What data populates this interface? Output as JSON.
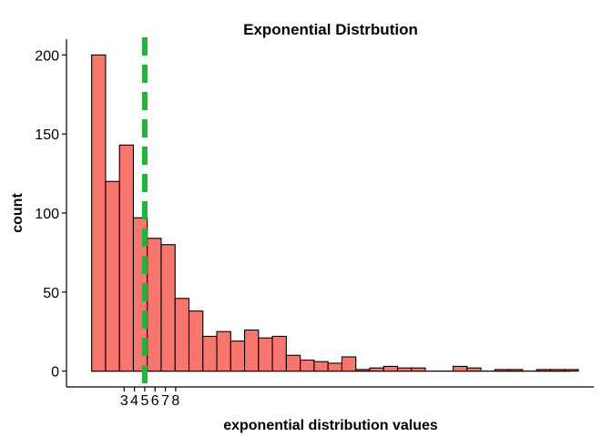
{
  "chart_data": {
    "type": "bar",
    "title": "Exponential Distrbution",
    "xlabel": "exponential distribution values",
    "ylabel": "count",
    "ylim": [
      -10,
      210
    ],
    "xlim": [
      -2.6,
      48.6
    ],
    "y_ticks": [
      0,
      50,
      100,
      150,
      200
    ],
    "x_ticks": [
      3,
      4,
      5,
      6,
      7,
      8
    ],
    "bin_width": 1.35,
    "first_bin_center": 0.52,
    "bar_color": "#F8766D",
    "mean_line": {
      "x": 5,
      "color": "#22B33A",
      "style": "dashed"
    },
    "values": [
      200,
      120,
      143,
      97,
      84,
      80,
      46,
      38,
      22,
      25,
      19,
      26,
      21,
      22,
      10,
      7,
      6,
      5,
      9,
      1,
      2,
      3,
      2,
      2,
      0,
      0,
      3,
      2,
      0,
      1,
      1,
      0,
      1,
      1,
      1
    ],
    "legend": "none",
    "grid": false
  }
}
